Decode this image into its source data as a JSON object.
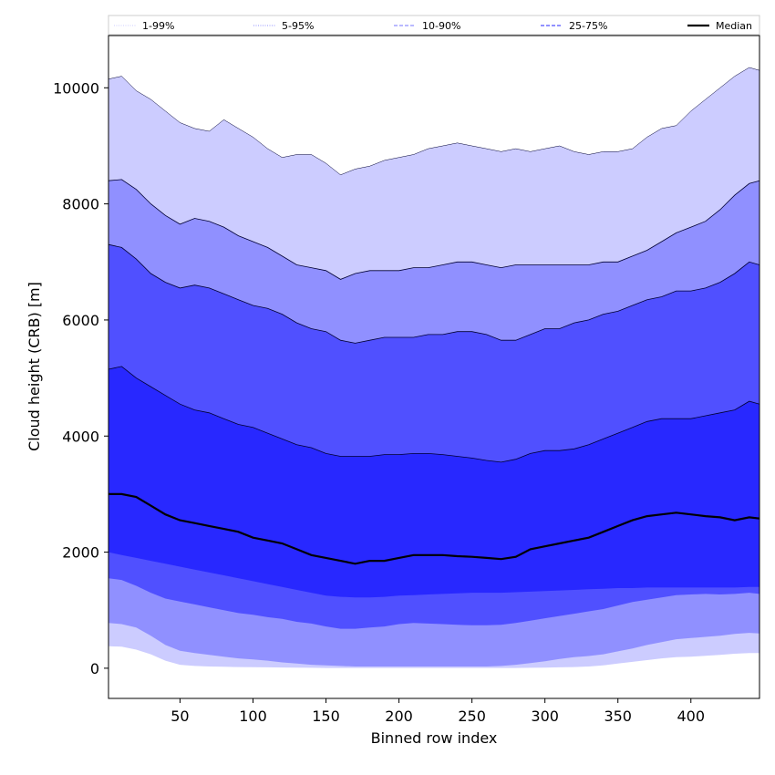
{
  "chart_data": {
    "type": "area",
    "xlabel": "Binned row index",
    "ylabel": "Cloud height (CRB) [m]",
    "xlim": [
      1,
      447
    ],
    "ylim": [
      -520,
      10900
    ],
    "x_ticks": [
      50,
      100,
      150,
      200,
      250,
      300,
      350,
      400
    ],
    "y_ticks": [
      0,
      2000,
      4000,
      6000,
      8000,
      10000
    ],
    "grid": false,
    "legend_position": "top",
    "x": [
      1,
      10,
      20,
      30,
      40,
      50,
      60,
      70,
      80,
      90,
      100,
      110,
      120,
      130,
      140,
      150,
      160,
      170,
      180,
      190,
      200,
      210,
      220,
      230,
      240,
      250,
      260,
      270,
      280,
      290,
      300,
      310,
      320,
      330,
      340,
      350,
      360,
      370,
      380,
      390,
      400,
      410,
      420,
      430,
      440,
      447
    ],
    "bands": [
      {
        "name": "1-99%",
        "color": "#ccccff",
        "lower": [
          380,
          370,
          320,
          240,
          130,
          60,
          40,
          30,
          25,
          20,
          18,
          15,
          12,
          10,
          8,
          5,
          5,
          5,
          5,
          5,
          5,
          5,
          5,
          5,
          5,
          5,
          5,
          5,
          5,
          8,
          10,
          15,
          20,
          30,
          50,
          80,
          110,
          140,
          170,
          190,
          200,
          215,
          230,
          250,
          260,
          260
        ],
        "upper": [
          10150,
          10200,
          9950,
          9800,
          9600,
          9400,
          9300,
          9250,
          9450,
          9300,
          9150,
          8950,
          8800,
          8850,
          8850,
          8700,
          8500,
          8600,
          8650,
          8750,
          8800,
          8850,
          8950,
          9000,
          9050,
          9000,
          8950,
          8900,
          8950,
          8900,
          8950,
          9000,
          8900,
          8850,
          8900,
          8900,
          8950,
          9150,
          9300,
          9350,
          9600,
          9800,
          10000,
          10200,
          10350,
          10300
        ]
      },
      {
        "name": "5-95%",
        "color": "#9090ff",
        "lower": [
          780,
          760,
          700,
          560,
          400,
          300,
          260,
          230,
          200,
          170,
          150,
          130,
          100,
          80,
          60,
          50,
          40,
          30,
          30,
          30,
          30,
          30,
          30,
          30,
          30,
          30,
          30,
          40,
          60,
          90,
          120,
          160,
          190,
          210,
          240,
          290,
          340,
          400,
          450,
          500,
          520,
          540,
          560,
          590,
          610,
          600
        ],
        "upper": [
          8400,
          8420,
          8250,
          8000,
          7800,
          7650,
          7750,
          7700,
          7600,
          7450,
          7350,
          7250,
          7100,
          6950,
          6900,
          6850,
          6700,
          6800,
          6850,
          6850,
          6850,
          6900,
          6900,
          6950,
          7000,
          7000,
          6950,
          6900,
          6950,
          6950,
          6950,
          6950,
          6950,
          6950,
          7000,
          7000,
          7100,
          7200,
          7350,
          7500,
          7600,
          7700,
          7900,
          8150,
          8350,
          8400
        ]
      },
      {
        "name": "10-90%",
        "color": "#5050ff",
        "lower": [
          1550,
          1520,
          1420,
          1300,
          1200,
          1150,
          1100,
          1050,
          1000,
          950,
          920,
          880,
          850,
          800,
          770,
          720,
          680,
          680,
          700,
          720,
          760,
          780,
          770,
          760,
          750,
          740,
          740,
          750,
          780,
          820,
          860,
          900,
          940,
          980,
          1020,
          1080,
          1140,
          1180,
          1220,
          1260,
          1270,
          1280,
          1270,
          1280,
          1300,
          1280
        ],
        "upper": [
          7300,
          7250,
          7050,
          6800,
          6650,
          6550,
          6600,
          6550,
          6450,
          6350,
          6250,
          6200,
          6100,
          5950,
          5850,
          5800,
          5650,
          5600,
          5650,
          5700,
          5700,
          5700,
          5750,
          5750,
          5800,
          5800,
          5750,
          5650,
          5650,
          5750,
          5850,
          5850,
          5950,
          6000,
          6100,
          6150,
          6250,
          6350,
          6400,
          6500,
          6500,
          6550,
          6650,
          6800,
          7000,
          6950
        ]
      },
      {
        "name": "25-75%",
        "color": "#2828ff",
        "lower": [
          2000,
          1950,
          1900,
          1850,
          1800,
          1750,
          1700,
          1650,
          1600,
          1550,
          1500,
          1450,
          1400,
          1350,
          1300,
          1250,
          1230,
          1220,
          1220,
          1230,
          1250,
          1260,
          1270,
          1280,
          1290,
          1300,
          1300,
          1300,
          1310,
          1320,
          1330,
          1340,
          1350,
          1360,
          1370,
          1380,
          1380,
          1390,
          1390,
          1390,
          1390,
          1390,
          1390,
          1390,
          1400,
          1400
        ],
        "upper": [
          5150,
          5200,
          5000,
          4850,
          4700,
          4550,
          4450,
          4400,
          4300,
          4200,
          4150,
          4050,
          3950,
          3850,
          3800,
          3700,
          3650,
          3650,
          3650,
          3680,
          3680,
          3700,
          3700,
          3680,
          3650,
          3620,
          3580,
          3550,
          3600,
          3700,
          3750,
          3750,
          3780,
          3850,
          3950,
          4050,
          4150,
          4250,
          4300,
          4300,
          4300,
          4350,
          4400,
          4450,
          4600,
          4550
        ]
      }
    ],
    "series": [
      {
        "name": "Median",
        "color": "#000000",
        "values": [
          3000,
          3000,
          2950,
          2800,
          2650,
          2550,
          2500,
          2450,
          2400,
          2350,
          2250,
          2200,
          2150,
          2050,
          1950,
          1900,
          1850,
          1800,
          1850,
          1850,
          1900,
          1950,
          1950,
          1950,
          1930,
          1920,
          1900,
          1880,
          1920,
          2050,
          2100,
          2150,
          2200,
          2250,
          2350,
          2450,
          2550,
          2620,
          2650,
          2680,
          2650,
          2620,
          2600,
          2550,
          2600,
          2580
        ]
      }
    ],
    "legend": [
      {
        "label": "1-99%",
        "style": "dotted",
        "color": "#ccccff"
      },
      {
        "label": "5-95%",
        "style": "dotted",
        "color": "#9090ff"
      },
      {
        "label": "10-90%",
        "style": "dashed",
        "color": "#9090ff"
      },
      {
        "label": "25-75%",
        "style": "dashed",
        "color": "#5050ff"
      },
      {
        "label": "Median",
        "style": "solid",
        "color": "#000000"
      }
    ]
  }
}
